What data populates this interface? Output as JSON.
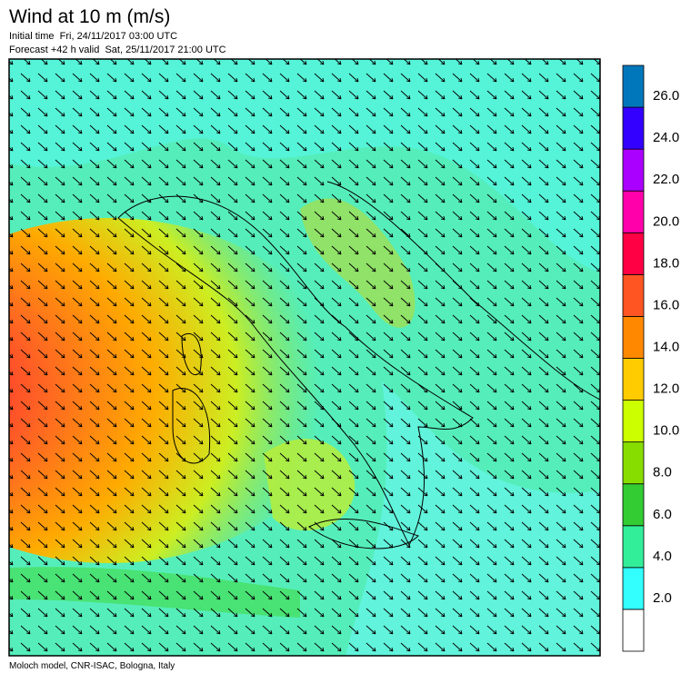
{
  "header": {
    "title": "Wind at 10 m (m/s)",
    "initial_time": "Initial time  Fri, 24/11/2017 03:00 UTC",
    "forecast": "Forecast +42 h valid  Sat, 25/11/2017 21:00 UTC"
  },
  "colorbar": {
    "colors": [
      "#ffffff",
      "#33ffff",
      "#33ee99",
      "#33cc33",
      "#88dd00",
      "#ccff00",
      "#ffcc00",
      "#ff8800",
      "#ff5522",
      "#ff0044",
      "#ff00aa",
      "#aa00ff",
      "#3300ff",
      "#0077bb"
    ],
    "ticks": [
      {
        "value": 2,
        "label": "2.0"
      },
      {
        "value": 4,
        "label": "4.0"
      },
      {
        "value": 6,
        "label": "6.0"
      },
      {
        "value": 8,
        "label": "8.0"
      },
      {
        "value": 10,
        "label": "10.0"
      },
      {
        "value": 12,
        "label": "12.0"
      },
      {
        "value": 14,
        "label": "14.0"
      },
      {
        "value": 16,
        "label": "16.0"
      },
      {
        "value": 18,
        "label": "18.0"
      },
      {
        "value": 20,
        "label": "20.0"
      },
      {
        "value": 22,
        "label": "22.0"
      },
      {
        "value": 24,
        "label": "24.0"
      },
      {
        "value": 26,
        "label": "26.0"
      }
    ],
    "range": [
      0,
      28
    ]
  },
  "footer": "Moloch model, CNR-ISAC, Bologna, Italy"
}
